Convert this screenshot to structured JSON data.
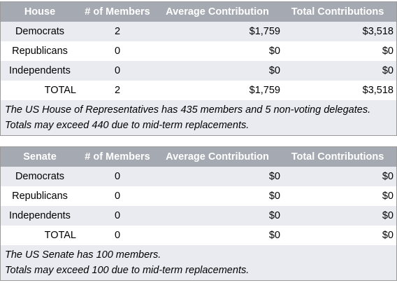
{
  "house": {
    "headers": [
      "House",
      "# of Members",
      "Average Contribution",
      "Total Contributions"
    ],
    "rows": [
      {
        "label": "Democrats",
        "members": "2",
        "average": "$1,759",
        "total": "$3,518"
      },
      {
        "label": "Republicans",
        "members": "0",
        "average": "$0",
        "total": "$0"
      },
      {
        "label": "Independents",
        "members": "0",
        "average": "$0",
        "total": "$0"
      },
      {
        "label": "TOTAL",
        "members": "2",
        "average": "$1,759",
        "total": "$3,518"
      }
    ],
    "notes": [
      "The US House of Representatives has 435 members and 5 non-voting delegates.",
      "Totals may exceed 440 due to mid-term replacements."
    ]
  },
  "senate": {
    "headers": [
      "Senate",
      "# of Members",
      "Average Contribution",
      "Total Contributions"
    ],
    "rows": [
      {
        "label": "Democrats",
        "members": "0",
        "average": "$0",
        "total": "$0"
      },
      {
        "label": "Republicans",
        "members": "0",
        "average": "$0",
        "total": "$0"
      },
      {
        "label": "Independents",
        "members": "0",
        "average": "$0",
        "total": "$0"
      },
      {
        "label": "TOTAL",
        "members": "0",
        "average": "$0",
        "total": "$0"
      }
    ],
    "notes": [
      "The US Senate has 100 members.",
      "Totals may exceed 100 due to mid-term replacements."
    ]
  }
}
